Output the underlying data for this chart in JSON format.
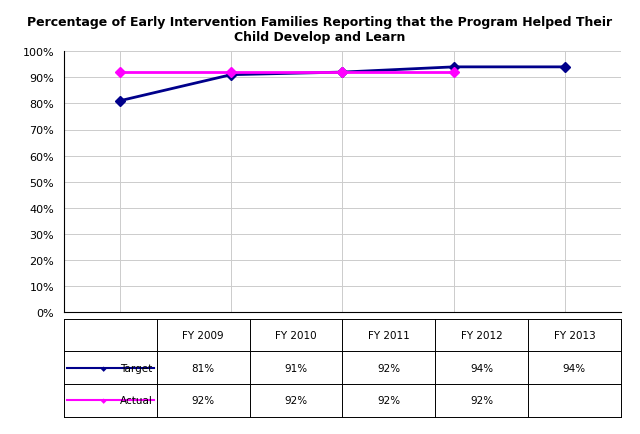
{
  "title": "Percentage of Early Intervention Families Reporting that the Program Helped Their\nChild Develop and Learn",
  "x_labels": [
    "FY 2009",
    "FY 2010",
    "FY 2011",
    "FY 2012",
    "FY 2013"
  ],
  "x_positions": [
    0,
    1,
    2,
    3,
    4
  ],
  "target_values": [
    81,
    91,
    92,
    94,
    94
  ],
  "actual_values": [
    92,
    92,
    92,
    92,
    null
  ],
  "target_label": "Target",
  "actual_label": "Actual",
  "target_color": "#00008B",
  "actual_color": "#FF00FF",
  "ylim": [
    0,
    100
  ],
  "yticks": [
    0,
    10,
    20,
    30,
    40,
    50,
    60,
    70,
    80,
    90,
    100
  ],
  "ytick_labels": [
    "0%",
    "10%",
    "20%",
    "30%",
    "40%",
    "50%",
    "60%",
    "70%",
    "80%",
    "90%",
    "100%"
  ],
  "table_target": [
    "81%",
    "91%",
    "92%",
    "94%",
    "94%"
  ],
  "table_actual": [
    "92%",
    "92%",
    "92%",
    "92%",
    ""
  ],
  "background_color": "#FFFFFF",
  "grid_color": "#CCCCCC",
  "title_fontsize": 9,
  "axis_label_fontsize": 8,
  "table_fontsize": 7.5,
  "line_width": 2,
  "marker_style": "D",
  "marker_size": 5
}
